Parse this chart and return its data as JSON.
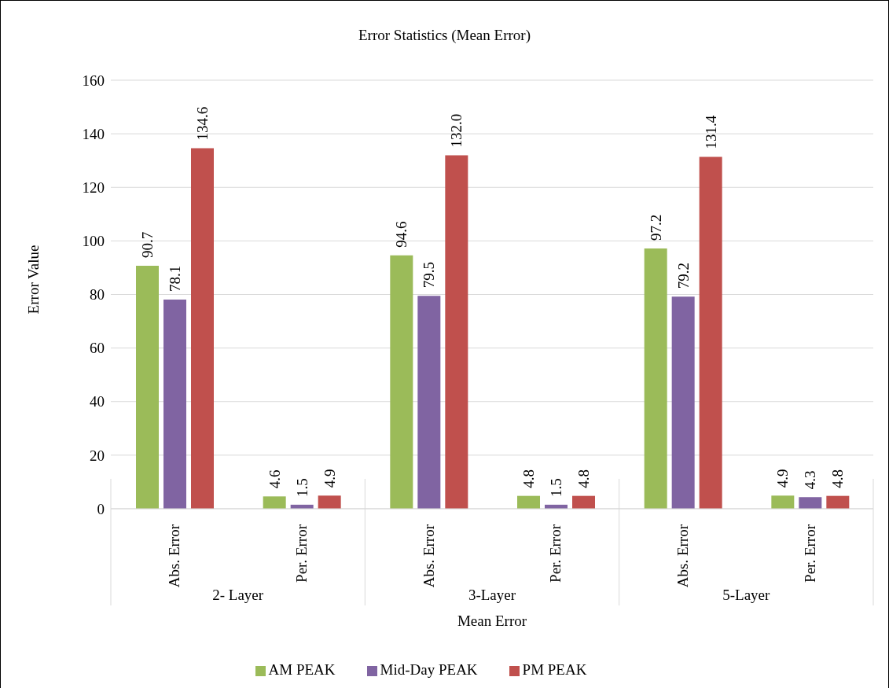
{
  "chart_data": {
    "type": "bar",
    "title": "Error Statistics (Mean Error)",
    "xlabel": "Mean Error",
    "ylabel": "Error Value",
    "categories": [
      "Abs. Error",
      "Per. Error",
      "Abs. Error",
      "Per. Error",
      "Abs. Error",
      "Per. Error"
    ],
    "annotations": [
      "2- Layer",
      "3-Layer",
      "5-Layer"
    ],
    "series": [
      {
        "name": "AM PEAK",
        "color": "#9bbb59",
        "values": [
          90.7,
          4.6,
          94.6,
          4.8,
          97.2,
          4.9
        ],
        "value_labels": [
          "90.7",
          "4.6",
          "94.6",
          "4.8",
          "97.2",
          "4.9"
        ]
      },
      {
        "name": "Mid-Day PEAK",
        "color": "#8064a2",
        "values": [
          78.1,
          1.5,
          79.5,
          1.5,
          79.2,
          4.3
        ],
        "value_labels": [
          "78.1",
          "1.5",
          "79.5",
          "1.5",
          "79.2",
          "4.3"
        ]
      },
      {
        "name": "PM PEAK",
        "color": "#c0504d",
        "values": [
          134.6,
          4.9,
          132.0,
          4.8,
          131.4,
          4.8
        ],
        "value_labels": [
          "134.6",
          "4.9",
          "132.0",
          "4.8",
          "131.4",
          "4.8"
        ]
      }
    ],
    "ylim": [
      0,
      160
    ],
    "yticks": [
      0,
      20,
      40,
      60,
      80,
      100,
      120,
      140,
      160
    ],
    "grid": "y",
    "legend": "bottom"
  }
}
